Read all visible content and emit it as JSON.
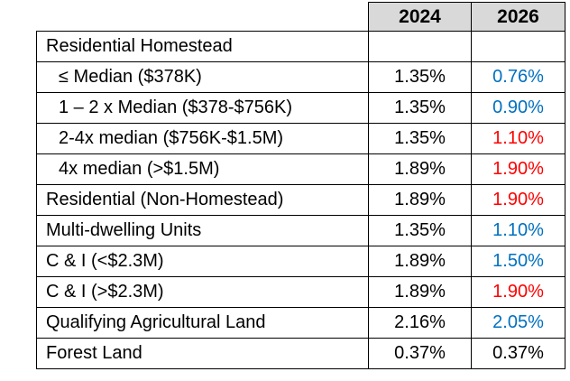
{
  "chart_data": {
    "type": "table",
    "title": "",
    "columns": [
      "2024",
      "2026"
    ],
    "colors": {
      "decrease_blue": "#0070c0",
      "increase_red": "#ff0000",
      "neutral_black": "#000000",
      "header_bg": "#d9d9d9",
      "border": "#000000"
    },
    "rows": [
      {
        "label": "Residential Homestead",
        "indent": 0,
        "v2024": "",
        "v2026": "",
        "color_2024": "#000000",
        "color_2026": "#000000"
      },
      {
        "label": "≤ Median ($378K)",
        "indent": 1,
        "v2024": "1.35%",
        "v2026": "0.76%",
        "color_2024": "#000000",
        "color_2026": "#0070c0"
      },
      {
        "label": "1 – 2 x Median ($378-$756K)",
        "indent": 1,
        "v2024": "1.35%",
        "v2026": "0.90%",
        "color_2024": "#000000",
        "color_2026": "#0070c0"
      },
      {
        "label": "2-4x median ($756K-$1.5M)",
        "indent": 1,
        "v2024": "1.35%",
        "v2026": "1.10%",
        "color_2024": "#000000",
        "color_2026": "#ff0000"
      },
      {
        "label": "4x median (>$1.5M)",
        "indent": 1,
        "v2024": "1.89%",
        "v2026": "1.90%",
        "color_2024": "#000000",
        "color_2026": "#ff0000"
      },
      {
        "label": "Residential (Non-Homestead)",
        "indent": 0,
        "v2024": "1.89%",
        "v2026": "1.90%",
        "color_2024": "#000000",
        "color_2026": "#ff0000"
      },
      {
        "label": "Multi-dwelling Units",
        "indent": 0,
        "v2024": "1.35%",
        "v2026": "1.10%",
        "color_2024": "#000000",
        "color_2026": "#0070c0"
      },
      {
        "label": "C & I (<$2.3M)",
        "indent": 0,
        "v2024": "1.89%",
        "v2026": "1.50%",
        "color_2024": "#000000",
        "color_2026": "#0070c0"
      },
      {
        "label": "C & I (>$2.3M)",
        "indent": 0,
        "v2024": "1.89%",
        "v2026": "1.90%",
        "color_2024": "#000000",
        "color_2026": "#ff0000"
      },
      {
        "label": "Qualifying Agricultural Land",
        "indent": 0,
        "v2024": "2.16%",
        "v2026": "2.05%",
        "color_2024": "#000000",
        "color_2026": "#0070c0"
      },
      {
        "label": "Forest Land",
        "indent": 0,
        "v2024": "0.37%",
        "v2026": "0.37%",
        "color_2024": "#000000",
        "color_2026": "#000000"
      }
    ]
  }
}
